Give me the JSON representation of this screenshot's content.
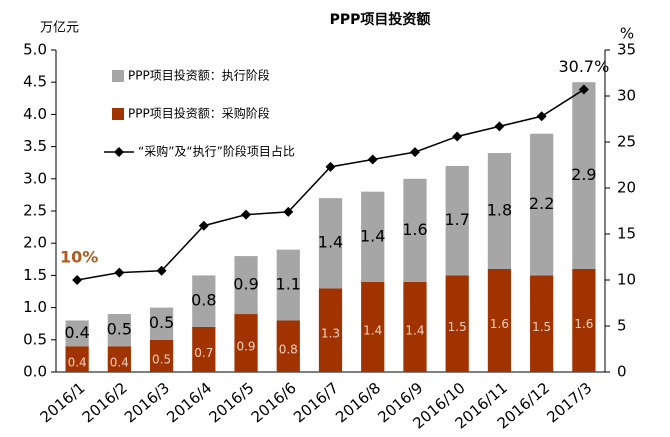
{
  "chart_data": {
    "type": "stacked-bar-line",
    "title": "PPP项目投资额",
    "y_label": "万亿元",
    "y2_label": "%",
    "categories": [
      "2016/1",
      "2016/2",
      "2016/3",
      "2016/4",
      "2016/5",
      "2016/6",
      "2016/7",
      "2016/8",
      "2016/9",
      "2016/10",
      "2016/11",
      "2016/12",
      "2017/3"
    ],
    "series": [
      {
        "name": "PPP项目投资额：采购阶段",
        "type": "bar",
        "color": "#a03300",
        "label_color": "#f2d0c0",
        "values": [
          0.4,
          0.4,
          0.5,
          0.7,
          0.9,
          0.8,
          1.3,
          1.4,
          1.4,
          1.5,
          1.6,
          1.5,
          1.6
        ]
      },
      {
        "name": "PPP项目投资额：执行阶段",
        "type": "bar",
        "color": "#a6a6a6",
        "label_color": "#000000",
        "values": [
          0.4,
          0.5,
          0.5,
          0.8,
          0.9,
          1.1,
          1.4,
          1.4,
          1.6,
          1.7,
          1.8,
          2.2,
          2.9
        ]
      },
      {
        "name": "“采购”及“执行”阶段项目占比",
        "type": "line",
        "axis": "y2",
        "color": "#000000",
        "values": [
          10,
          10.8,
          11,
          15.9,
          17.1,
          17.4,
          22.3,
          23.1,
          23.9,
          25.6,
          26.7,
          27.8,
          30.7
        ],
        "value_labels": [
          "10%",
          null,
          null,
          null,
          null,
          null,
          null,
          null,
          null,
          null,
          null,
          null,
          "30.7%"
        ]
      }
    ],
    "ylim": [
      0,
      5
    ],
    "yticks": [
      {
        "value": 0,
        "label": "0.0"
      },
      {
        "value": 0.5,
        "label": "0.5"
      },
      {
        "value": 1,
        "label": "1.0"
      },
      {
        "value": 1.5,
        "label": "1.5"
      },
      {
        "value": 2,
        "label": "2.0"
      },
      {
        "value": 2.5,
        "label": "2.5"
      },
      {
        "value": 3,
        "label": "3.0"
      },
      {
        "value": 3.5,
        "label": "3.5"
      },
      {
        "value": 4,
        "label": "4.0"
      },
      {
        "value": 4.5,
        "label": "4.5"
      },
      {
        "value": 5,
        "label": "5.0"
      }
    ],
    "y2lim": [
      0,
      35
    ],
    "y2ticks": [
      0,
      5,
      10,
      15,
      20,
      25,
      30,
      35
    ],
    "legend": "upper left",
    "grid": false
  }
}
